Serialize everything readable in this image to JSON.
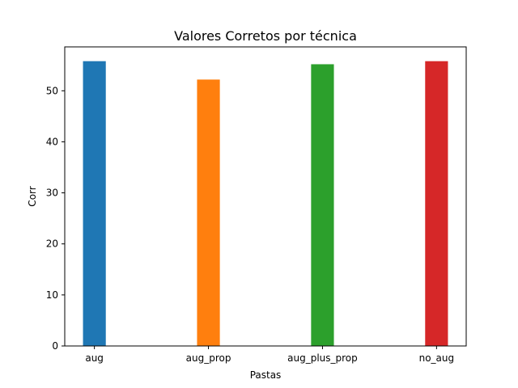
{
  "chart_data": {
    "type": "bar",
    "title": "Valores Corretos por técnica",
    "xlabel": "Pastas",
    "ylabel": "Corr",
    "categories": [
      "aug",
      "aug_prop",
      "aug_plus_prop",
      "no_aug"
    ],
    "values": [
      55.8,
      52.2,
      55.2,
      55.8
    ],
    "colors": [
      "#1f77b4",
      "#ff7f0e",
      "#2ca02c",
      "#d62728"
    ],
    "ylim": [
      0,
      58.6
    ],
    "yticks": [
      0,
      10,
      20,
      30,
      40,
      50
    ],
    "grid": false,
    "legend": "none"
  }
}
